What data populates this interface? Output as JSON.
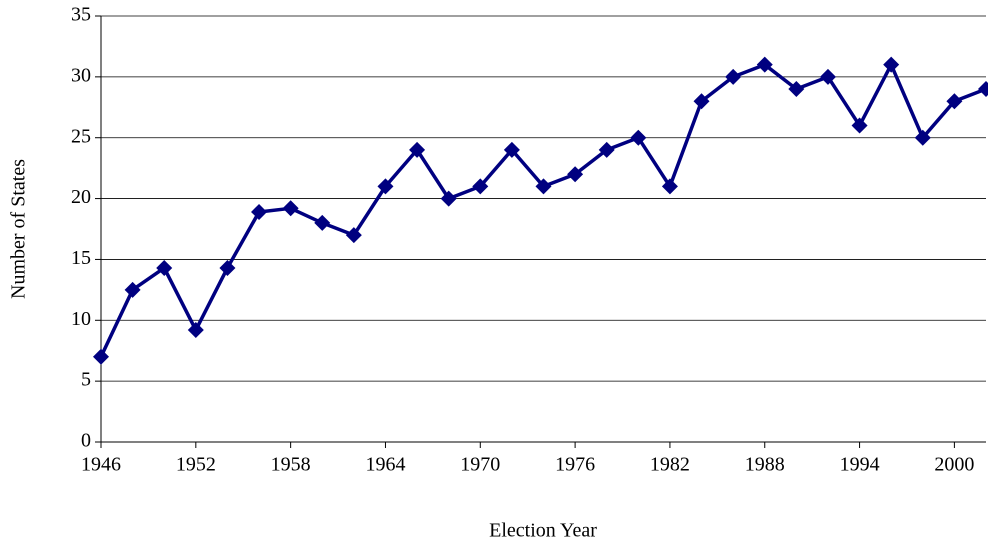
{
  "chart_data": {
    "type": "line",
    "xlabel": "Election Year",
    "ylabel": "Number of States",
    "x": [
      1946,
      1948,
      1950,
      1952,
      1954,
      1956,
      1958,
      1960,
      1962,
      1964,
      1966,
      1968,
      1970,
      1972,
      1974,
      1976,
      1978,
      1980,
      1982,
      1984,
      1986,
      1988,
      1990,
      1992,
      1994,
      1996,
      1998,
      2000,
      2002
    ],
    "series": [
      {
        "name": "Number of States",
        "color": "#000080",
        "values": [
          7,
          12.5,
          14.3,
          9.2,
          14.3,
          18.9,
          19.2,
          18,
          17,
          21,
          24,
          20,
          21,
          24,
          21,
          22,
          24,
          25,
          21,
          28,
          30,
          31,
          29,
          30,
          26,
          31,
          25,
          28,
          29
        ]
      }
    ],
    "xlim": [
      1946,
      2002
    ],
    "xticks": [
      1946,
      1952,
      1958,
      1964,
      1970,
      1976,
      1982,
      1988,
      1994,
      2000
    ],
    "ylim": [
      0,
      35
    ],
    "yticks": [
      0,
      5,
      10,
      15,
      20,
      25,
      30,
      35
    ],
    "grid": true
  }
}
